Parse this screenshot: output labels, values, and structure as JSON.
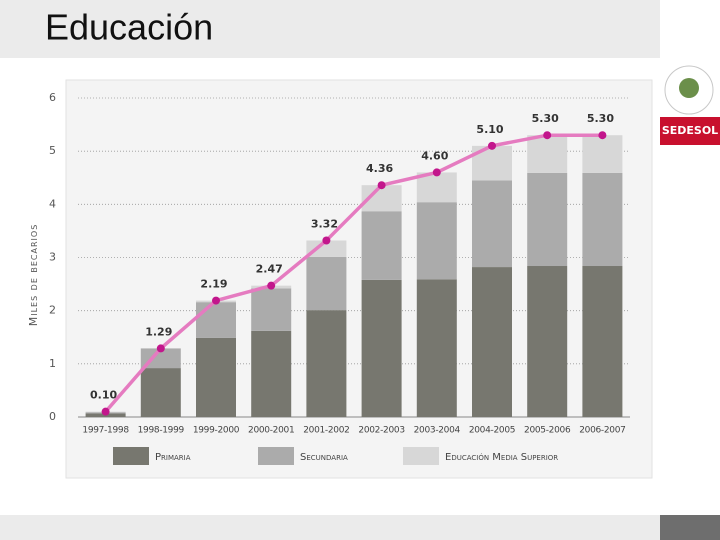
{
  "slide": {
    "title": "Educación",
    "logo": "SEDESOL"
  },
  "chart_data": {
    "type": "bar",
    "stacked": true,
    "ylabel": "Miles de becarios",
    "categories": [
      "1997-1998",
      "1998-1999",
      "1999-2000",
      "2000-2001",
      "2001-2002",
      "2002-2003",
      "2003-2004",
      "2004-2005",
      "2005-2006",
      "2006-2007"
    ],
    "series": [
      {
        "name": "Primaria",
        "color": "#77776f",
        "values": [
          0.07,
          0.92,
          1.49,
          1.62,
          2.01,
          2.58,
          2.59,
          2.82,
          2.84,
          2.84
        ]
      },
      {
        "name": "Secundaria",
        "color": "#ababab",
        "values": [
          0.02,
          0.37,
          0.67,
          0.8,
          1.0,
          1.29,
          1.45,
          1.63,
          1.75,
          1.75
        ]
      },
      {
        "name": "Educación Media Superior",
        "color": "#d7d7d7",
        "values": [
          0.01,
          0,
          0.03,
          0.05,
          0.31,
          0.49,
          0.56,
          0.65,
          0.71,
          0.71
        ]
      }
    ],
    "line": {
      "color": "#e57bc0",
      "marker_color": "#c2168c",
      "values": [
        0.1,
        1.29,
        2.19,
        2.47,
        3.32,
        4.36,
        4.6,
        5.1,
        5.3,
        5.3
      ],
      "value_labels": [
        "0.10",
        "1.29",
        "2.19",
        "2.47",
        "3.32",
        "4.36",
        "4.60",
        "5.10",
        "5.30",
        "5.30"
      ]
    },
    "ylim": [
      0,
      6
    ],
    "yticks": [
      0,
      1,
      2,
      3,
      4,
      5,
      6
    ],
    "grid": true
  }
}
